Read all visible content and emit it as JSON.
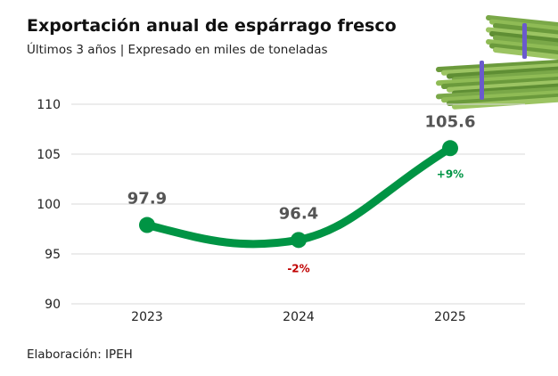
{
  "title": "Exportación anual de espárrago fresco",
  "subtitle": "Últimos 3 años | Expresado en miles de toneladas",
  "source": "Elaboración: IPEH",
  "chart_data": {
    "type": "line",
    "categories": [
      "2023",
      "2024",
      "2025"
    ],
    "values": [
      97.9,
      96.4,
      105.6
    ],
    "data_labels": [
      "97.9",
      "96.4",
      "105.6"
    ],
    "change_labels": [
      "",
      "-2%",
      "+9%"
    ],
    "ylim": [
      90,
      110
    ],
    "yticks": [
      90,
      95,
      100,
      105,
      110
    ],
    "grid": true,
    "line_color": "#009444",
    "positive_color": "#009444",
    "negative_color": "#c00000",
    "label_color": "#555555"
  },
  "decoration": "asparagus-bundle-image"
}
